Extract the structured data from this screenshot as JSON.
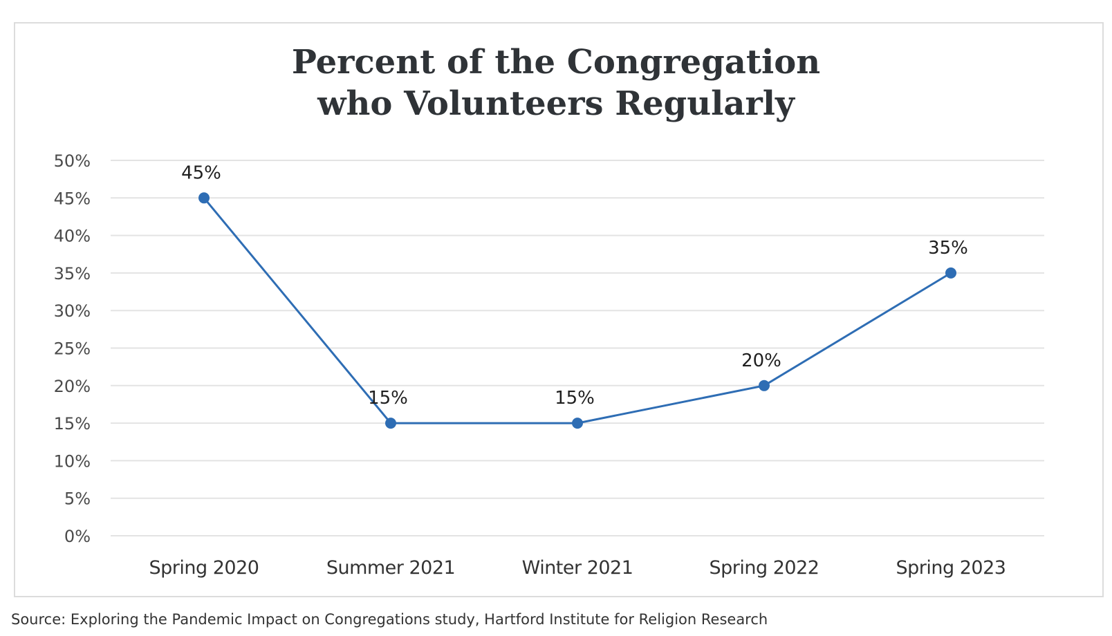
{
  "chart_data": {
    "type": "line",
    "title_lines": [
      "Percent of the Congregation",
      "who Volunteers Regularly"
    ],
    "categories": [
      "Spring 2020",
      "Summer 2021",
      "Winter 2021",
      "Spring 2022",
      "Spring 2023"
    ],
    "series": [
      {
        "values": [
          45,
          15,
          15,
          20,
          35
        ],
        "data_labels": [
          "45%",
          "15%",
          "15%",
          "20%",
          "35%"
        ]
      }
    ],
    "yticks": [
      0,
      5,
      10,
      15,
      20,
      25,
      30,
      35,
      40,
      45,
      50
    ],
    "ytick_labels": [
      "0%",
      "5%",
      "10%",
      "15%",
      "20%",
      "25%",
      "30%",
      "35%",
      "40%",
      "45%",
      "50%"
    ],
    "ylim": [
      0,
      50
    ],
    "grid": true,
    "legend": "none",
    "line_color": "#2e6db4",
    "grid_color": "#e3e3e3"
  },
  "source": "Source: Exploring the Pandemic Impact on Congregations study, Hartford Institute for Religion Research"
}
